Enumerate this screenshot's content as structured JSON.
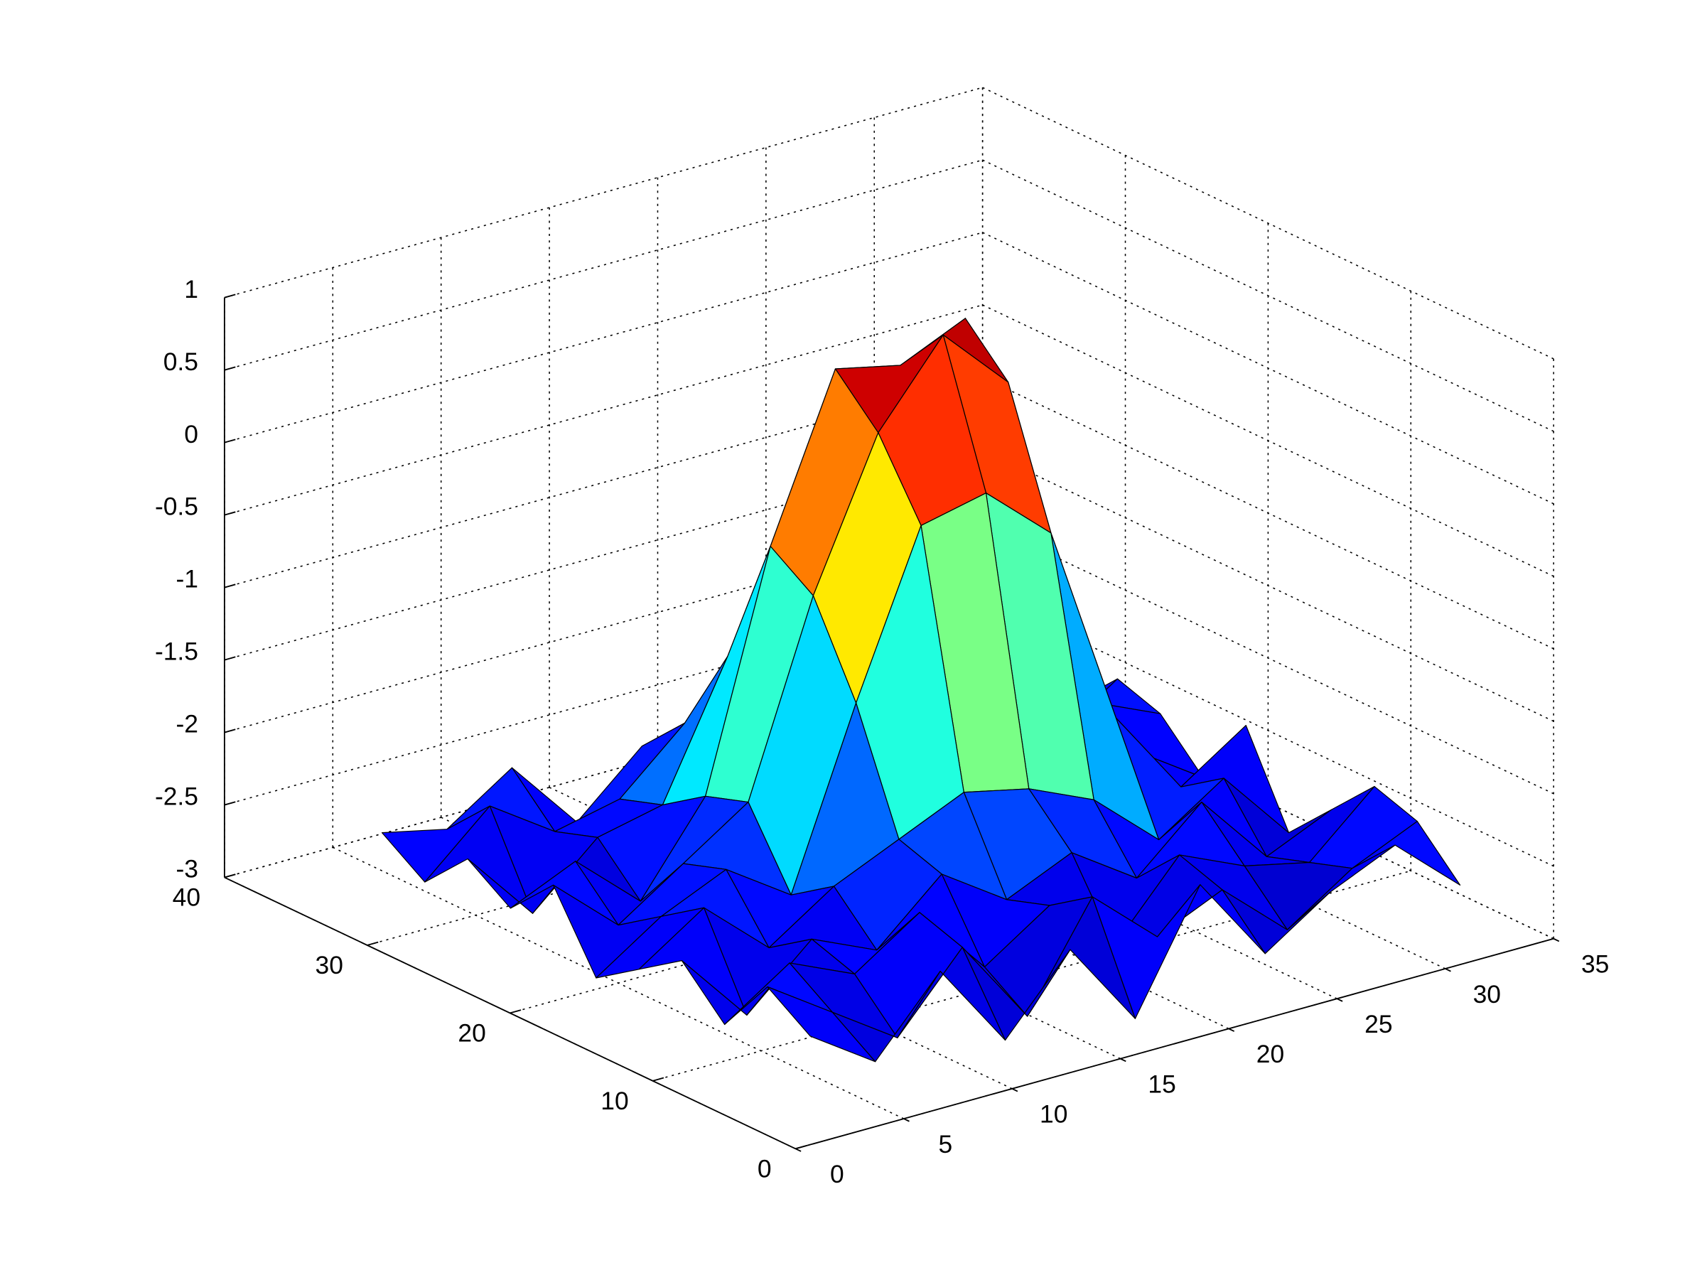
{
  "chart_data": {
    "type": "surface",
    "x": [
      2,
      5,
      8,
      11,
      14,
      17,
      20,
      23,
      26,
      29,
      32
    ],
    "y": [
      2,
      5,
      8,
      11,
      14,
      17,
      20,
      23,
      26,
      29,
      32
    ],
    "z": [
      [
        -2.4,
        -2.7,
        -2.2,
        -2.8,
        -2.3,
        -2.9,
        -2.1,
        -2.7,
        -2.4,
        -2.2,
        -2.6
      ],
      [
        -2.2,
        -2.5,
        -2.8,
        -2.3,
        -2.9,
        -2.2,
        -2.6,
        -2.4,
        -2.8,
        -2.5,
        -2.3
      ],
      [
        -2.6,
        -2.3,
        -2.5,
        -2.2,
        -2.7,
        -2.4,
        -2.8,
        -2.3,
        -2.5,
        -2.6,
        -2.2
      ],
      [
        -2.3,
        -2.8,
        -2.4,
        -2.6,
        -2.2,
        -2.5,
        -2.3,
        -2.6,
        -2.2,
        -2.7,
        -2.5
      ],
      [
        -2.5,
        -2.2,
        -2.6,
        -2.3,
        -2.1,
        -1.9,
        -2.0,
        -2.2,
        -2.6,
        -2.3,
        -2.8
      ],
      [
        -2.7,
        -2.4,
        -2.2,
        -2.5,
        -1.3,
        -0.2,
        -0.1,
        -0.5,
        -1.9,
        -2.5,
        -2.2
      ],
      [
        -2.2,
        -2.6,
        -2.3,
        -2.0,
        -0.7,
        0.3,
        0.85,
        0.4,
        -1.6,
        -2.4,
        -2.7
      ],
      [
        -2.5,
        -2.3,
        -2.7,
        -2.1,
        -0.5,
        0.6,
        0.5,
        0.7,
        -1.8,
        -2.2,
        -2.4
      ],
      [
        -2.3,
        -2.8,
        -2.4,
        -2.3,
        -1.4,
        -0.6,
        -0.4,
        -1.0,
        -2.1,
        -2.6,
        -2.3
      ],
      [
        -2.6,
        -2.2,
        -2.5,
        -2.4,
        -2.0,
        -2.4,
        -2.1,
        -2.5,
        -2.2,
        -2.4,
        -2.6
      ],
      [
        -2.4,
        -2.5,
        -2.2,
        -2.7,
        -2.3,
        -2.5,
        -2.8,
        -2.2,
        -2.6,
        -2.3,
        -2.2
      ]
    ],
    "colormap": "jet",
    "xlim": [
      0,
      35
    ],
    "xticks": [
      0,
      5,
      10,
      15,
      20,
      25,
      30,
      35
    ],
    "ylim": [
      0,
      40
    ],
    "yticks": [
      0,
      10,
      20,
      30,
      40
    ],
    "zlim": [
      -3,
      1
    ],
    "zticks": [
      -3,
      -2.5,
      -2,
      -1.5,
      -1,
      -0.5,
      0,
      0.5,
      1
    ],
    "grid": true
  }
}
